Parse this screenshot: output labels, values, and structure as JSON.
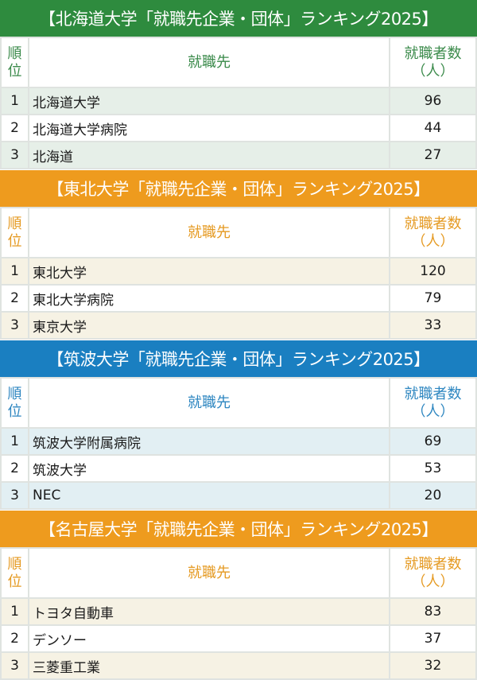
{
  "headers": {
    "rank": "順位",
    "destination": "就職先",
    "count_line1": "就職者数",
    "count_line2": "（人）"
  },
  "colors": {
    "green": "#2e8b3e",
    "orange": "#ee9b1e",
    "blue": "#1a7fc1"
  },
  "sections": [
    {
      "title": "【北海道大学「就職先企業・団体」ランキング2025】",
      "rows": [
        {
          "rank": "1",
          "name": "北海道大学",
          "count": "96"
        },
        {
          "rank": "2",
          "name": "北海道大学病院",
          "count": "44"
        },
        {
          "rank": "3",
          "name": "北海道",
          "count": "27"
        }
      ]
    },
    {
      "title": "【東北大学「就職先企業・団体」ランキング2025】",
      "rows": [
        {
          "rank": "1",
          "name": "東北大学",
          "count": "120"
        },
        {
          "rank": "2",
          "name": "東北大学病院",
          "count": "79"
        },
        {
          "rank": "3",
          "name": "東京大学",
          "count": "33"
        }
      ]
    },
    {
      "title": "【筑波大学「就職先企業・団体」ランキング2025】",
      "rows": [
        {
          "rank": "1",
          "name": "筑波大学附属病院",
          "count": "69"
        },
        {
          "rank": "2",
          "name": "筑波大学",
          "count": "53"
        },
        {
          "rank": "3",
          "name": "NEC",
          "count": "20"
        }
      ]
    },
    {
      "title": "【名古屋大学「就職先企業・団体」ランキング2025】",
      "rows": [
        {
          "rank": "1",
          "name": "トヨタ自動車",
          "count": "83"
        },
        {
          "rank": "2",
          "name": "デンソー",
          "count": "37"
        },
        {
          "rank": "3",
          "name": "三菱重工業",
          "count": "32"
        }
      ]
    }
  ]
}
